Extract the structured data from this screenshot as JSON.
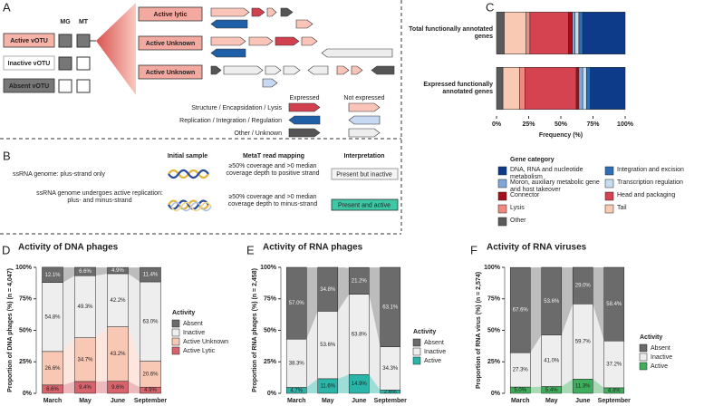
{
  "panel_a": {
    "label": "A",
    "columns": [
      "MG",
      "MT"
    ],
    "votu_types": [
      "Active vOTU",
      "Inactive vOTU",
      "Absent vOTU"
    ],
    "examples": [
      "Active lytic",
      "Active Unknown",
      "Active Unknown"
    ],
    "legend_headers": [
      "Expressed",
      "Not expressed"
    ],
    "gene_functions": [
      "Structure / Encapsidation / Lysis",
      "Replication / Integration / Regulation",
      "Other / Unknown"
    ]
  },
  "panel_b": {
    "label": "B",
    "headers": [
      "Initial sample",
      "MetaT read mapping",
      "Interpretation"
    ],
    "rows": [
      {
        "genome": "ssRNA genome: plus-strand only",
        "mapping": "≥50% coverage and >0 median coverage depth to positive strand",
        "interpretation": "Present but inactive"
      },
      {
        "genome": "ssRNA genome undergoes active replication: plus- and minus-strand",
        "mapping": "≥50% coverage and >0 median coverage depth to minus-strand",
        "interpretation": "Present and active"
      }
    ]
  },
  "chart_data": [
    {
      "type": "hbar_stacked",
      "label": "C",
      "categories": [
        "Total functionally annotated genes",
        "Expressed functionally annotated genes"
      ],
      "series": [
        {
          "name": "Other",
          "color": "#5a5a5a",
          "values": [
            6,
            5
          ]
        },
        {
          "name": "Tail",
          "color": "#f9c9b3",
          "values": [
            17,
            13
          ]
        },
        {
          "name": "Lysis",
          "color": "#f08a80",
          "values": [
            3,
            4
          ]
        },
        {
          "name": "Head and packaging",
          "color": "#d4434f",
          "values": [
            30,
            40
          ]
        },
        {
          "name": "Connector",
          "color": "#a3101d",
          "values": [
            3,
            2
          ]
        },
        {
          "name": "Moron, auxiliary metabolic gene and host takeover",
          "color": "#7fa8d8",
          "values": [
            2,
            3
          ]
        },
        {
          "name": "Transcription regulation",
          "color": "#c8dcf0",
          "values": [
            3,
            3
          ]
        },
        {
          "name": "Integration and excision",
          "color": "#2f6db4",
          "values": [
            3,
            3
          ]
        },
        {
          "name": "DNA, RNA and nucleotide metabolism",
          "color": "#0d3b8a",
          "values": [
            33,
            27
          ]
        }
      ],
      "xlim": [
        0,
        100
      ],
      "xticks": [
        {
          "value": 0,
          "label": "0%"
        },
        {
          "value": 25,
          "label": "25%"
        },
        {
          "value": 50,
          "label": "50%"
        },
        {
          "value": 75,
          "label": "75%"
        },
        {
          "value": 100,
          "label": "100%"
        }
      ],
      "xlabel": "Frequency (%)",
      "legend_title": "Gene category"
    },
    {
      "type": "alluvial",
      "label": "D",
      "title": "Activity of DNA phages",
      "ylabel": "Proportion of DNA phages (%) (n = 4,047)",
      "categories": [
        "March",
        "May",
        "June",
        "September"
      ],
      "series": [
        {
          "name": "Active Lytic",
          "color": "#d8636d",
          "values": [
            6.6,
            9.4,
            9.6,
            4.9
          ],
          "value_labels": [
            "6.6%",
            "9.4%",
            "9.6%",
            "4.9%"
          ]
        },
        {
          "name": "Active Unknown",
          "color": "#f9c8b4",
          "values": [
            26.6,
            34.7,
            43.2,
            20.6
          ],
          "value_labels": [
            "26.6%",
            "34.7%",
            "43.2%",
            "20.6%"
          ]
        },
        {
          "name": "Inactive",
          "color": "#eeeeee",
          "values": [
            54.8,
            49.3,
            42.2,
            63.0
          ],
          "value_labels": [
            "54.8%",
            "49.3%",
            "42.2%",
            "63.0%"
          ]
        },
        {
          "name": "Absent",
          "color": "#6b6b6b",
          "values": [
            12.1,
            6.6,
            4.9,
            11.4
          ],
          "value_labels": [
            "12.1%",
            "6.6%",
            "4.9%",
            "11.4%"
          ]
        }
      ],
      "ylim": [
        0,
        100
      ],
      "yticks": [
        {
          "value": 0,
          "label": "0%"
        },
        {
          "value": 25,
          "label": "25%"
        },
        {
          "value": 50,
          "label": "50%"
        },
        {
          "value": 75,
          "label": "75%"
        },
        {
          "value": 100,
          "label": "100%"
        }
      ],
      "legend_title": "Activity"
    },
    {
      "type": "alluvial",
      "label": "E",
      "title": "Activity of RNA phages",
      "ylabel": "Proportion of RNA phages (%) (n = 2,458)",
      "categories": [
        "March",
        "May",
        "June",
        "September"
      ],
      "series": [
        {
          "name": "Active",
          "color": "#2bb5a8",
          "values": [
            4.7,
            11.6,
            14.9,
            2.6
          ],
          "value_labels": [
            "4.7%",
            "11.6%",
            "14.9%",
            "2.6%"
          ]
        },
        {
          "name": "Inactive",
          "color": "#eeeeee",
          "values": [
            38.3,
            53.6,
            63.8,
            34.3
          ],
          "value_labels": [
            "38.3%",
            "53.6%",
            "63.8%",
            "34.3%"
          ]
        },
        {
          "name": "Absent",
          "color": "#6b6b6b",
          "values": [
            57.0,
            34.8,
            21.2,
            63.1
          ],
          "value_labels": [
            "57.0%",
            "34.8%",
            "21.2%",
            "63.1%"
          ]
        }
      ],
      "ylim": [
        0,
        100
      ],
      "yticks": [
        {
          "value": 0,
          "label": "0%"
        },
        {
          "value": 25,
          "label": "25%"
        },
        {
          "value": 50,
          "label": "50%"
        },
        {
          "value": 75,
          "label": "75%"
        },
        {
          "value": 100,
          "label": "100%"
        }
      ],
      "legend_title": "Activity"
    },
    {
      "type": "alluvial",
      "label": "F",
      "title": "Activity of RNA viruses",
      "ylabel": "Proportion of RNA virus (%) (n = 2,574)",
      "categories": [
        "March",
        "May",
        "June",
        "September"
      ],
      "series": [
        {
          "name": "Active",
          "color": "#3fae5c",
          "values": [
            5.0,
            5.4,
            11.3,
            4.4
          ],
          "value_labels": [
            "5.0%",
            "5.4%",
            "11.3%",
            "4.4%"
          ]
        },
        {
          "name": "Inactive",
          "color": "#eeeeee",
          "values": [
            27.3,
            41.0,
            59.7,
            37.2
          ],
          "value_labels": [
            "27.3%",
            "41.0%",
            "59.7%",
            "37.2%"
          ]
        },
        {
          "name": "Absent",
          "color": "#6b6b6b",
          "values": [
            67.6,
            53.6,
            29.0,
            58.4
          ],
          "value_labels": [
            "67.6%",
            "53.6%",
            "29.0%",
            "58.4%"
          ]
        }
      ],
      "ylim": [
        0,
        100
      ],
      "yticks": [
        {
          "value": 0,
          "label": "0%"
        },
        {
          "value": 25,
          "label": "25%"
        },
        {
          "value": 50,
          "label": "50%"
        },
        {
          "value": 75,
          "label": "75%"
        },
        {
          "value": 100,
          "label": "100%"
        }
      ],
      "legend_title": "Activity"
    }
  ]
}
